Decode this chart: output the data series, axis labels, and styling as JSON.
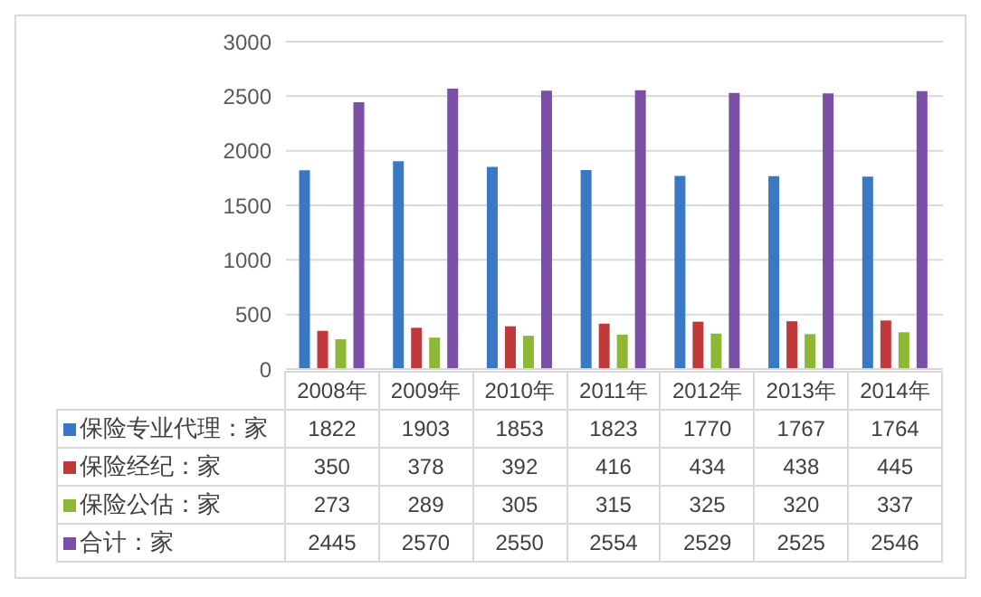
{
  "chart_data": {
    "type": "bar",
    "categories": [
      "2008年",
      "2009年",
      "2010年",
      "2011年",
      "2012年",
      "2013年",
      "2014年"
    ],
    "series": [
      {
        "name": "保险专业代理：家",
        "color": "#3a78c3",
        "values": [
          1822,
          1903,
          1853,
          1823,
          1770,
          1767,
          1764
        ]
      },
      {
        "name": "保险经纪：家",
        "color": "#c0393b",
        "values": [
          350,
          378,
          392,
          416,
          434,
          438,
          445
        ]
      },
      {
        "name": "保险公估：家",
        "color": "#8db836",
        "values": [
          273,
          289,
          305,
          315,
          325,
          320,
          337
        ]
      },
      {
        "name": "合计：家",
        "color": "#7b4fa6",
        "values": [
          2445,
          2570,
          2550,
          2554,
          2529,
          2525,
          2546
        ]
      }
    ],
    "ylim": [
      0,
      3000
    ],
    "yticks": [
      0,
      500,
      1000,
      1500,
      2000,
      2500,
      3000
    ],
    "grid": "y",
    "legend": "bottom left",
    "data_labels": true
  }
}
